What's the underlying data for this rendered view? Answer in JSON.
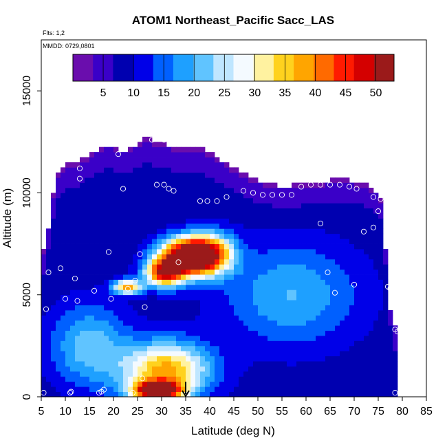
{
  "chart_data": {
    "type": "heatmap",
    "title": "ATOM1 Northeast_Pacific Sacc_LAS",
    "notes": [
      "Flts: 1,2",
      "MMDD: 0729,0801"
    ],
    "xlabel": "Latitude (deg N)",
    "ylabel": "Altitude (m)",
    "xlim": [
      5,
      85
    ],
    "ylim": [
      0,
      17500
    ],
    "xticks": [
      5,
      10,
      15,
      20,
      25,
      30,
      35,
      40,
      45,
      50,
      55,
      60,
      65,
      70,
      75,
      80,
      85
    ],
    "yticks": [
      0,
      5000,
      10000,
      15000
    ],
    "colorbar": {
      "range": [
        0,
        53
      ],
      "ticks": [
        5,
        10,
        15,
        20,
        25,
        30,
        35,
        40,
        45,
        50
      ],
      "placement": "top inside plot"
    },
    "colors": {
      "scale": [
        "#6a0dad",
        "#3a00c8",
        "#0000b0",
        "#0000e8",
        "#0060ff",
        "#1ea0ff",
        "#60c4ff",
        "#bfe6ff",
        "#f4faff",
        "#fff2a0",
        "#ffd21e",
        "#ffa500",
        "#ff6a00",
        "#ff1a00",
        "#d40000",
        "#9b1a1a"
      ],
      "marker": "#ffffff",
      "arrow": "#000000"
    },
    "grid": "lat step 1 deg, alt step 250 m",
    "lat_extent": [
      5,
      79
    ],
    "alt_top_profile": {
      "lat": [
        5,
        7,
        8,
        10,
        12,
        15,
        19,
        21,
        23,
        26,
        27,
        29,
        39,
        43,
        49,
        51,
        55,
        63,
        66,
        72,
        74,
        75,
        76,
        77,
        78,
        79
      ],
      "top_m": [
        6500,
        8800,
        10800,
        11300,
        11300,
        11800,
        12300,
        12000,
        12000,
        12500,
        12800,
        12300,
        12000,
        11400,
        10600,
        10400,
        10200,
        10400,
        10600,
        10400,
        10100,
        9900,
        9400,
        5100,
        3300,
        3300
      ]
    },
    "features": [
      {
        "name": "upper core",
        "lat": 35,
        "alt_m": 6900,
        "peak": 53,
        "lat_width": 5.5,
        "alt_width_m": 900
      },
      {
        "name": "upper core west",
        "lat": 30.5,
        "alt_m": 6100,
        "peak": 44,
        "lat_width": 4,
        "alt_width_m": 700
      },
      {
        "name": "upper core east",
        "lat": 40,
        "alt_m": 7000,
        "peak": 40,
        "lat_width": 5,
        "alt_width_m": 1000
      },
      {
        "name": "surface core",
        "lat": 29,
        "alt_m": 300,
        "peak": 52,
        "lat_width": 5,
        "alt_width_m": 450
      },
      {
        "name": "surface plume",
        "lat": 31,
        "alt_m": 1300,
        "peak": 38,
        "lat_width": 9,
        "alt_width_m": 1400
      },
      {
        "name": "west lobe",
        "lat": 23,
        "alt_m": 5400,
        "peak": 37,
        "lat_width": 3,
        "alt_width_m": 350
      },
      {
        "name": "tropics low",
        "lat": 15,
        "alt_m": 2500,
        "peak": 22,
        "lat_width": 8,
        "alt_width_m": 2000
      },
      {
        "name": "mid latitudes",
        "lat": 57,
        "alt_m": 5000,
        "peak": 20,
        "lat_width": 14,
        "alt_width_m": 2500
      }
    ],
    "background_level": 8,
    "flight_markers": [
      [
        5.5,
        200
      ],
      [
        6,
        4300
      ],
      [
        6.5,
        6100
      ],
      [
        8,
        11200
      ],
      [
        9,
        6300
      ],
      [
        10,
        4800
      ],
      [
        11,
        200
      ],
      [
        11.2,
        250
      ],
      [
        12,
        5800
      ],
      [
        12.5,
        4700
      ],
      [
        13,
        11200
      ],
      [
        13,
        10700
      ],
      [
        16,
        5200
      ],
      [
        17,
        200
      ],
      [
        17.5,
        250
      ],
      [
        18,
        350
      ],
      [
        19,
        7100
      ],
      [
        19.5,
        4800
      ],
      [
        21,
        11900
      ],
      [
        22,
        10200
      ],
      [
        23,
        5300
      ],
      [
        24,
        200
      ],
      [
        24.5,
        5700
      ],
      [
        25.5,
        7000
      ],
      [
        26,
        900
      ],
      [
        26.5,
        4400
      ],
      [
        28,
        12600
      ],
      [
        29,
        10400
      ],
      [
        30.5,
        10400
      ],
      [
        30.5,
        12600
      ],
      [
        31.5,
        10200
      ],
      [
        32.5,
        10100
      ],
      [
        33.5,
        6600
      ],
      [
        38,
        9600
      ],
      [
        39.5,
        9600
      ],
      [
        41.5,
        9600
      ],
      [
        43.5,
        9800
      ],
      [
        47,
        10100
      ],
      [
        49,
        10000
      ],
      [
        51,
        9900
      ],
      [
        53,
        9900
      ],
      [
        55,
        9900
      ],
      [
        57,
        9900
      ],
      [
        59,
        10300
      ],
      [
        61,
        10400
      ],
      [
        63,
        10400
      ],
      [
        63,
        8500
      ],
      [
        64.5,
        6100
      ],
      [
        65,
        10400
      ],
      [
        66,
        5100
      ],
      [
        67,
        10400
      ],
      [
        68,
        11200
      ],
      [
        69,
        10300
      ],
      [
        70,
        5500
      ],
      [
        70.5,
        10200
      ],
      [
        72,
        8100
      ],
      [
        74,
        8300
      ],
      [
        74,
        9800
      ],
      [
        75,
        9100
      ],
      [
        75.5,
        9700
      ],
      [
        77,
        5400
      ],
      [
        77.5,
        5300
      ],
      [
        78.5,
        3300
      ],
      [
        79,
        3200
      ],
      [
        78.5,
        200
      ]
    ],
    "arrow_lat": 35
  }
}
